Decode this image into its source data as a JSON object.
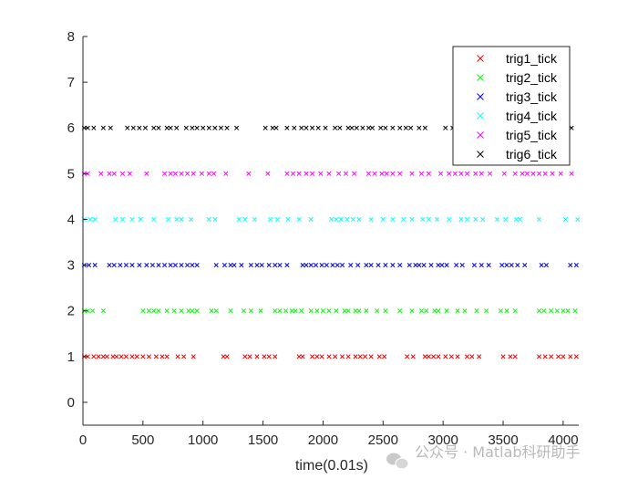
{
  "watermark": {
    "text": "公众号 · Matlab科研助手"
  },
  "chart_data": {
    "type": "scatter",
    "title": "",
    "xlabel": "time(0.01s)",
    "ylabel": "",
    "xlim": [
      0,
      4130
    ],
    "ylim": [
      -0.5,
      8
    ],
    "xticks": [
      0,
      500,
      1000,
      1500,
      2000,
      2500,
      3000,
      3500,
      4000
    ],
    "yticks": [
      0,
      1,
      2,
      3,
      4,
      5,
      6,
      7,
      8
    ],
    "marker": "x",
    "grid": false,
    "legend_position": "top-right",
    "series": [
      {
        "name": "trig1_tick",
        "color": "#ff0000",
        "y": 1,
        "x": [
          10,
          40,
          90,
          130,
          170,
          200,
          250,
          280,
          320,
          360,
          410,
          450,
          500,
          550,
          610,
          660,
          700,
          790,
          840,
          920,
          1170,
          1200,
          1350,
          1390,
          1450,
          1510,
          1550,
          1600,
          1800,
          1830,
          1910,
          1950,
          1990,
          2050,
          2100,
          2160,
          2210,
          2270,
          2310,
          2350,
          2400,
          2470,
          2510,
          2700,
          2750,
          2850,
          2880,
          2920,
          2960,
          3020,
          3070,
          3120,
          3200,
          3240,
          3300,
          3500,
          3560,
          3600,
          3800,
          3850,
          3900,
          3960,
          4000,
          4060,
          4110
        ]
      },
      {
        "name": "trig2_tick",
        "color": "#00ff00",
        "y": 2,
        "x": [
          10,
          40,
          80,
          170,
          500,
          550,
          590,
          630,
          700,
          760,
          820,
          880,
          910,
          950,
          1070,
          1110,
          1230,
          1340,
          1400,
          1480,
          1600,
          1640,
          1690,
          1740,
          1770,
          1820,
          1900,
          1950,
          2000,
          2050,
          2110,
          2180,
          2210,
          2270,
          2300,
          2360,
          2450,
          2520,
          2640,
          2740,
          2820,
          2860,
          2930,
          2960,
          3030,
          3120,
          3180,
          3280,
          3360,
          3480,
          3530,
          3600,
          3800,
          3840,
          3900,
          3950,
          4000,
          4040,
          4100
        ]
      },
      {
        "name": "trig3_tick",
        "color": "#0000ff",
        "y": 3,
        "x": [
          10,
          50,
          100,
          220,
          260,
          310,
          360,
          410,
          470,
          530,
          580,
          630,
          680,
          730,
          770,
          820,
          870,
          910,
          950,
          1110,
          1180,
          1230,
          1260,
          1320,
          1400,
          1450,
          1490,
          1550,
          1600,
          1640,
          1700,
          1830,
          1860,
          1900,
          1940,
          1990,
          2030,
          2080,
          2120,
          2160,
          2230,
          2290,
          2360,
          2400,
          2460,
          2520,
          2580,
          2640,
          2720,
          2770,
          2800,
          2840,
          2900,
          2960,
          2990,
          3030,
          3110,
          3160,
          3260,
          3320,
          3380,
          3490,
          3530,
          3570,
          3620,
          3680,
          3820,
          3860,
          4060,
          4110
        ]
      },
      {
        "name": "trig4_tick",
        "color": "#00ffff",
        "y": 4,
        "x": [
          10,
          60,
          100,
          270,
          330,
          410,
          480,
          590,
          710,
          780,
          820,
          900,
          1050,
          1100,
          1300,
          1350,
          1430,
          1560,
          1620,
          1710,
          1800,
          1900,
          2070,
          2110,
          2150,
          2200,
          2250,
          2300,
          2400,
          2500,
          2580,
          2670,
          2740,
          2830,
          2880,
          2950,
          3050,
          3150,
          3200,
          3270,
          3330,
          3450,
          3520,
          3610,
          3640,
          3800,
          4020,
          4120
        ]
      },
      {
        "name": "trig5_tick",
        "color": "#ff00ff",
        "y": 5,
        "x": [
          10,
          40,
          150,
          220,
          260,
          330,
          390,
          530,
          680,
          730,
          770,
          820,
          870,
          920,
          990,
          1050,
          1090,
          1190,
          1380,
          1540,
          1700,
          1750,
          1800,
          1860,
          1910,
          1980,
          2050,
          2130,
          2190,
          2260,
          2380,
          2430,
          2490,
          2530,
          2580,
          2640,
          2740,
          2820,
          2880,
          2980,
          3050,
          3100,
          3150,
          3200,
          3270,
          3320,
          3390,
          3510,
          3600,
          3660,
          3700,
          3750,
          3800,
          3850,
          3910,
          3980,
          4070
        ]
      },
      {
        "name": "trig6_tick",
        "color": "#000000",
        "y": 6,
        "x": [
          10,
          40,
          90,
          170,
          230,
          370,
          420,
          470,
          520,
          590,
          630,
          700,
          730,
          780,
          860,
          910,
          950,
          1000,
          1050,
          1100,
          1150,
          1200,
          1280,
          1520,
          1580,
          1610,
          1700,
          1760,
          1820,
          1860,
          1910,
          1960,
          2020,
          2100,
          2140,
          2210,
          2240,
          2280,
          2330,
          2380,
          2410,
          2480,
          2520,
          2580,
          2640,
          2690,
          2730,
          2800,
          2850,
          3020,
          3080,
          4030,
          4070
        ]
      }
    ]
  }
}
